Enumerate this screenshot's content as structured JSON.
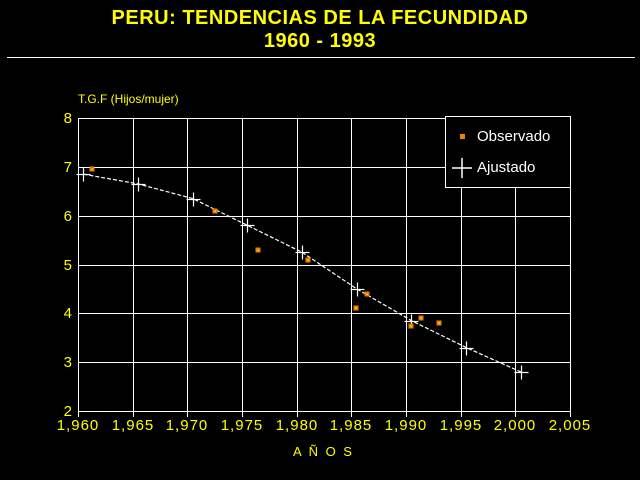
{
  "header": {
    "title_line1": "PERU: TENDENCIAS DE LA FECUNDIDAD",
    "title_line2": "1960 - 1993"
  },
  "colors": {
    "background": "#000000",
    "title_text": "#FFFF00",
    "axis_text": "#FFFF00",
    "grid": "#FFFFFF",
    "observado": "#EE8000",
    "observado_highlight": "#FFC050",
    "ajustado": "#FFFFFF",
    "legend_text": "#FFFFFF"
  },
  "y_axis_title": "T.G.F (Hijos/mujer)",
  "x_axis_title": "A Ñ O S",
  "legend": {
    "observado_label": "Observado",
    "ajustado_label": "Ajustado"
  },
  "chart_data": {
    "type": "line",
    "title": "PERU: TENDENCIAS DE LA FECUNDIDAD 1960 - 1993",
    "xlabel": "AÑOS",
    "ylabel": "T.G.F (Hijos/mujer)",
    "xlim": [
      1960,
      2005
    ],
    "ylim": [
      2,
      8
    ],
    "grid": true,
    "legend_position": "top-right",
    "x_tick_years": [
      1960,
      1965,
      1970,
      1975,
      1980,
      1985,
      1990,
      1995,
      2000,
      2005
    ],
    "x_tick_labels": [
      "1,960",
      "1,965",
      "1,970",
      "1,975",
      "1,980",
      "1,985",
      "1,990",
      "1,995",
      "2,000",
      "2,005"
    ],
    "y_ticks": [
      2,
      3,
      4,
      5,
      6,
      7,
      8
    ],
    "series": [
      {
        "name": "Observado",
        "type": "scatter",
        "marker": "square",
        "color": "#EE8000",
        "points": [
          [
            1961.3,
            6.95
          ],
          [
            1972.5,
            6.1
          ],
          [
            1976.5,
            5.3
          ],
          [
            1981,
            5.1
          ],
          [
            1985.4,
            4.1
          ],
          [
            1986.4,
            4.4
          ],
          [
            1990.5,
            3.75
          ],
          [
            1991.4,
            3.9
          ],
          [
            1993,
            3.8
          ]
        ]
      },
      {
        "name": "Ajustado",
        "type": "line",
        "marker": "plus",
        "color": "#FFFFFF",
        "line_style": "dashed",
        "points": [
          [
            1960.5,
            6.85
          ],
          [
            1965.5,
            6.65
          ],
          [
            1970.5,
            6.35
          ],
          [
            1975.5,
            5.8
          ],
          [
            1980.5,
            5.25
          ],
          [
            1985.5,
            4.5
          ],
          [
            1990.5,
            3.85
          ],
          [
            1995.5,
            3.3
          ],
          [
            2000.5,
            2.8
          ]
        ]
      }
    ]
  }
}
